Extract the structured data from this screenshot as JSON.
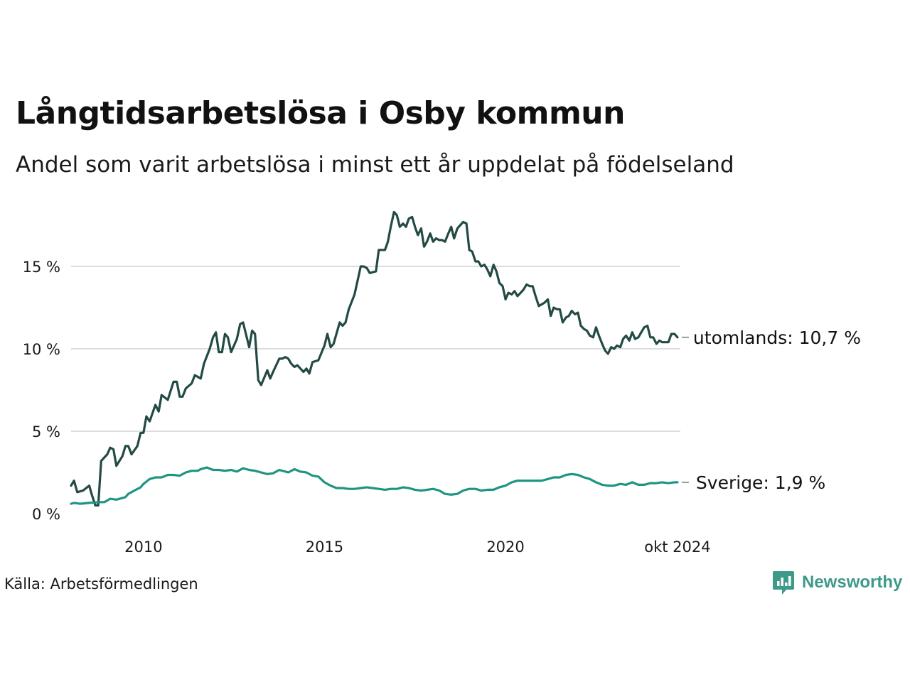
{
  "header": {
    "title": "Långtidsarbetslösa i Osby kommun",
    "subtitle": "Andel som varit arbetslösa i minst ett år uppdelat på födelseland"
  },
  "footer": {
    "source": "Källa: Arbetsförmedlingen",
    "brand": "Newsworthy"
  },
  "colors": {
    "utomlands": "#234a45",
    "sverige": "#1f9482",
    "grid": "#dddddd",
    "brand": "#3d9a88"
  },
  "chart_data": {
    "type": "line",
    "title": "Långtidsarbetslösa i Osby kommun",
    "subtitle": "Andel som varit arbetslösa i minst ett år uppdelat på födelseland",
    "x_unit": "year",
    "x_range": [
      2008.0,
      2024.83
    ],
    "ylim": [
      0,
      20
    ],
    "y_ticks": [
      0,
      5,
      10,
      15
    ],
    "y_tick_labels": [
      "0 %",
      "5 %",
      "10 %",
      "15 %"
    ],
    "x_ticks": [
      2010,
      2015,
      2020,
      2024.75
    ],
    "x_tick_labels": [
      "2010",
      "2015",
      "2020",
      "okt 2024"
    ],
    "grid": "horizontal",
    "series": [
      {
        "name": "utomlands",
        "end_label": "utomlands: 10,7 %",
        "points": [
          [
            2008.0,
            1.7
          ],
          [
            2008.08,
            2.0
          ],
          [
            2008.17,
            1.3
          ],
          [
            2008.33,
            1.4
          ],
          [
            2008.5,
            1.7
          ],
          [
            2008.58,
            1.1
          ],
          [
            2008.67,
            0.5
          ],
          [
            2008.75,
            0.5
          ],
          [
            2008.83,
            3.2
          ],
          [
            2009.0,
            3.6
          ],
          [
            2009.08,
            4.0
          ],
          [
            2009.17,
            3.9
          ],
          [
            2009.25,
            2.9
          ],
          [
            2009.42,
            3.5
          ],
          [
            2009.5,
            4.1
          ],
          [
            2009.58,
            4.1
          ],
          [
            2009.67,
            3.6
          ],
          [
            2009.83,
            4.1
          ],
          [
            2009.92,
            4.9
          ],
          [
            2010.0,
            4.9
          ],
          [
            2010.08,
            5.9
          ],
          [
            2010.17,
            5.6
          ],
          [
            2010.33,
            6.6
          ],
          [
            2010.42,
            6.2
          ],
          [
            2010.5,
            7.2
          ],
          [
            2010.67,
            6.9
          ],
          [
            2010.83,
            8.0
          ],
          [
            2010.92,
            8.0
          ],
          [
            2011.0,
            7.1
          ],
          [
            2011.08,
            7.1
          ],
          [
            2011.17,
            7.6
          ],
          [
            2011.33,
            7.9
          ],
          [
            2011.42,
            8.4
          ],
          [
            2011.58,
            8.2
          ],
          [
            2011.67,
            9.1
          ],
          [
            2011.83,
            10.0
          ],
          [
            2011.92,
            10.7
          ],
          [
            2012.0,
            11.0
          ],
          [
            2012.08,
            9.8
          ],
          [
            2012.17,
            9.8
          ],
          [
            2012.25,
            10.9
          ],
          [
            2012.33,
            10.7
          ],
          [
            2012.42,
            9.8
          ],
          [
            2012.58,
            10.6
          ],
          [
            2012.67,
            11.5
          ],
          [
            2012.75,
            11.6
          ],
          [
            2012.92,
            10.1
          ],
          [
            2013.0,
            11.1
          ],
          [
            2013.08,
            10.9
          ],
          [
            2013.17,
            8.1
          ],
          [
            2013.25,
            7.8
          ],
          [
            2013.42,
            8.7
          ],
          [
            2013.5,
            8.2
          ],
          [
            2013.58,
            8.6
          ],
          [
            2013.75,
            9.4
          ],
          [
            2013.83,
            9.4
          ],
          [
            2013.92,
            9.5
          ],
          [
            2014.0,
            9.4
          ],
          [
            2014.08,
            9.1
          ],
          [
            2014.17,
            8.9
          ],
          [
            2014.25,
            9.0
          ],
          [
            2014.42,
            8.6
          ],
          [
            2014.5,
            8.8
          ],
          [
            2014.58,
            8.5
          ],
          [
            2014.67,
            9.2
          ],
          [
            2014.83,
            9.3
          ],
          [
            2015.0,
            10.2
          ],
          [
            2015.08,
            10.9
          ],
          [
            2015.17,
            10.1
          ],
          [
            2015.25,
            10.3
          ],
          [
            2015.42,
            11.6
          ],
          [
            2015.5,
            11.4
          ],
          [
            2015.58,
            11.6
          ],
          [
            2015.67,
            12.4
          ],
          [
            2015.83,
            13.3
          ],
          [
            2015.92,
            14.2
          ],
          [
            2016.0,
            15.0
          ],
          [
            2016.08,
            15.0
          ],
          [
            2016.17,
            14.9
          ],
          [
            2016.25,
            14.6
          ],
          [
            2016.42,
            14.7
          ],
          [
            2016.5,
            16.0
          ],
          [
            2016.67,
            16.0
          ],
          [
            2016.75,
            16.5
          ],
          [
            2016.83,
            17.4
          ],
          [
            2016.92,
            18.3
          ],
          [
            2017.0,
            18.1
          ],
          [
            2017.08,
            17.4
          ],
          [
            2017.17,
            17.6
          ],
          [
            2017.25,
            17.4
          ],
          [
            2017.33,
            17.9
          ],
          [
            2017.42,
            18.0
          ],
          [
            2017.5,
            17.4
          ],
          [
            2017.58,
            16.9
          ],
          [
            2017.67,
            17.3
          ],
          [
            2017.75,
            16.2
          ],
          [
            2017.83,
            16.5
          ],
          [
            2017.92,
            17.0
          ],
          [
            2018.0,
            16.5
          ],
          [
            2018.08,
            16.7
          ],
          [
            2018.17,
            16.6
          ],
          [
            2018.25,
            16.6
          ],
          [
            2018.33,
            16.5
          ],
          [
            2018.42,
            17.0
          ],
          [
            2018.5,
            17.4
          ],
          [
            2018.58,
            16.7
          ],
          [
            2018.67,
            17.3
          ],
          [
            2018.75,
            17.5
          ],
          [
            2018.83,
            17.7
          ],
          [
            2018.92,
            17.6
          ],
          [
            2019.0,
            16.0
          ],
          [
            2019.08,
            15.9
          ],
          [
            2019.17,
            15.3
          ],
          [
            2019.25,
            15.3
          ],
          [
            2019.33,
            15.0
          ],
          [
            2019.42,
            15.1
          ],
          [
            2019.5,
            14.8
          ],
          [
            2019.58,
            14.4
          ],
          [
            2019.67,
            15.1
          ],
          [
            2019.75,
            14.7
          ],
          [
            2019.83,
            14.0
          ],
          [
            2019.92,
            13.8
          ],
          [
            2020.0,
            13.0
          ],
          [
            2020.08,
            13.4
          ],
          [
            2020.17,
            13.3
          ],
          [
            2020.25,
            13.5
          ],
          [
            2020.33,
            13.2
          ],
          [
            2020.42,
            13.4
          ],
          [
            2020.5,
            13.6
          ],
          [
            2020.58,
            13.9
          ],
          [
            2020.67,
            13.8
          ],
          [
            2020.75,
            13.8
          ],
          [
            2020.83,
            13.2
          ],
          [
            2020.92,
            12.6
          ],
          [
            2021.0,
            12.7
          ],
          [
            2021.08,
            12.8
          ],
          [
            2021.17,
            13.0
          ],
          [
            2021.25,
            12.0
          ],
          [
            2021.33,
            12.5
          ],
          [
            2021.42,
            12.4
          ],
          [
            2021.5,
            12.4
          ],
          [
            2021.58,
            11.6
          ],
          [
            2021.67,
            11.9
          ],
          [
            2021.75,
            12.0
          ],
          [
            2021.83,
            12.3
          ],
          [
            2021.92,
            12.1
          ],
          [
            2022.0,
            12.2
          ],
          [
            2022.08,
            11.4
          ],
          [
            2022.17,
            11.2
          ],
          [
            2022.25,
            11.1
          ],
          [
            2022.33,
            10.8
          ],
          [
            2022.42,
            10.7
          ],
          [
            2022.5,
            11.3
          ],
          [
            2022.58,
            10.8
          ],
          [
            2022.67,
            10.3
          ],
          [
            2022.75,
            9.9
          ],
          [
            2022.83,
            9.7
          ],
          [
            2022.92,
            10.1
          ],
          [
            2023.0,
            10.0
          ],
          [
            2023.08,
            10.2
          ],
          [
            2023.17,
            10.1
          ],
          [
            2023.25,
            10.6
          ],
          [
            2023.33,
            10.8
          ],
          [
            2023.42,
            10.5
          ],
          [
            2023.5,
            11.0
          ],
          [
            2023.58,
            10.6
          ],
          [
            2023.67,
            10.7
          ],
          [
            2023.75,
            11.0
          ],
          [
            2023.83,
            11.3
          ],
          [
            2023.92,
            11.4
          ],
          [
            2024.0,
            10.7
          ],
          [
            2024.08,
            10.7
          ],
          [
            2024.17,
            10.3
          ],
          [
            2024.25,
            10.5
          ],
          [
            2024.33,
            10.4
          ],
          [
            2024.42,
            10.4
          ],
          [
            2024.5,
            10.4
          ],
          [
            2024.58,
            10.9
          ],
          [
            2024.67,
            10.9
          ],
          [
            2024.75,
            10.7
          ]
        ]
      },
      {
        "name": "Sverige",
        "end_label": "Sverige:  1,9 %",
        "points": [
          [
            2008.0,
            0.6
          ],
          [
            2008.08,
            0.65
          ],
          [
            2008.25,
            0.6
          ],
          [
            2008.5,
            0.65
          ],
          [
            2008.75,
            0.7
          ],
          [
            2008.92,
            0.7
          ],
          [
            2009.08,
            0.9
          ],
          [
            2009.25,
            0.85
          ],
          [
            2009.5,
            1.0
          ],
          [
            2009.58,
            1.2
          ],
          [
            2009.75,
            1.4
          ],
          [
            2009.92,
            1.6
          ],
          [
            2010.0,
            1.8
          ],
          [
            2010.17,
            2.1
          ],
          [
            2010.33,
            2.2
          ],
          [
            2010.5,
            2.2
          ],
          [
            2010.67,
            2.35
          ],
          [
            2010.83,
            2.35
          ],
          [
            2011.0,
            2.3
          ],
          [
            2011.17,
            2.5
          ],
          [
            2011.33,
            2.6
          ],
          [
            2011.5,
            2.6
          ],
          [
            2011.58,
            2.7
          ],
          [
            2011.75,
            2.8
          ],
          [
            2011.92,
            2.65
          ],
          [
            2012.08,
            2.65
          ],
          [
            2012.25,
            2.6
          ],
          [
            2012.42,
            2.65
          ],
          [
            2012.58,
            2.55
          ],
          [
            2012.75,
            2.75
          ],
          [
            2012.92,
            2.65
          ],
          [
            2013.08,
            2.6
          ],
          [
            2013.25,
            2.5
          ],
          [
            2013.42,
            2.4
          ],
          [
            2013.58,
            2.45
          ],
          [
            2013.75,
            2.65
          ],
          [
            2013.92,
            2.55
          ],
          [
            2014.0,
            2.5
          ],
          [
            2014.17,
            2.7
          ],
          [
            2014.33,
            2.55
          ],
          [
            2014.5,
            2.5
          ],
          [
            2014.67,
            2.3
          ],
          [
            2014.83,
            2.25
          ],
          [
            2015.0,
            1.9
          ],
          [
            2015.17,
            1.7
          ],
          [
            2015.33,
            1.55
          ],
          [
            2015.5,
            1.55
          ],
          [
            2015.67,
            1.5
          ],
          [
            2015.83,
            1.5
          ],
          [
            2016.0,
            1.55
          ],
          [
            2016.17,
            1.6
          ],
          [
            2016.33,
            1.55
          ],
          [
            2016.5,
            1.5
          ],
          [
            2016.67,
            1.45
          ],
          [
            2016.83,
            1.5
          ],
          [
            2017.0,
            1.5
          ],
          [
            2017.17,
            1.6
          ],
          [
            2017.33,
            1.55
          ],
          [
            2017.5,
            1.45
          ],
          [
            2017.67,
            1.4
          ],
          [
            2017.83,
            1.45
          ],
          [
            2018.0,
            1.5
          ],
          [
            2018.17,
            1.4
          ],
          [
            2018.33,
            1.2
          ],
          [
            2018.5,
            1.15
          ],
          [
            2018.67,
            1.2
          ],
          [
            2018.83,
            1.4
          ],
          [
            2019.0,
            1.5
          ],
          [
            2019.17,
            1.5
          ],
          [
            2019.33,
            1.4
          ],
          [
            2019.5,
            1.45
          ],
          [
            2019.67,
            1.45
          ],
          [
            2019.83,
            1.6
          ],
          [
            2020.0,
            1.7
          ],
          [
            2020.17,
            1.9
          ],
          [
            2020.33,
            2.0
          ],
          [
            2020.5,
            2.0
          ],
          [
            2020.67,
            2.0
          ],
          [
            2020.83,
            2.0
          ],
          [
            2021.0,
            2.0
          ],
          [
            2021.17,
            2.1
          ],
          [
            2021.33,
            2.2
          ],
          [
            2021.5,
            2.2
          ],
          [
            2021.67,
            2.35
          ],
          [
            2021.83,
            2.4
          ],
          [
            2022.0,
            2.35
          ],
          [
            2022.17,
            2.2
          ],
          [
            2022.33,
            2.1
          ],
          [
            2022.5,
            1.9
          ],
          [
            2022.67,
            1.75
          ],
          [
            2022.83,
            1.7
          ],
          [
            2023.0,
            1.7
          ],
          [
            2023.17,
            1.8
          ],
          [
            2023.33,
            1.75
          ],
          [
            2023.5,
            1.9
          ],
          [
            2023.67,
            1.75
          ],
          [
            2023.83,
            1.75
          ],
          [
            2024.0,
            1.85
          ],
          [
            2024.17,
            1.85
          ],
          [
            2024.33,
            1.9
          ],
          [
            2024.5,
            1.85
          ],
          [
            2024.67,
            1.9
          ],
          [
            2024.75,
            1.9
          ]
        ]
      }
    ]
  }
}
